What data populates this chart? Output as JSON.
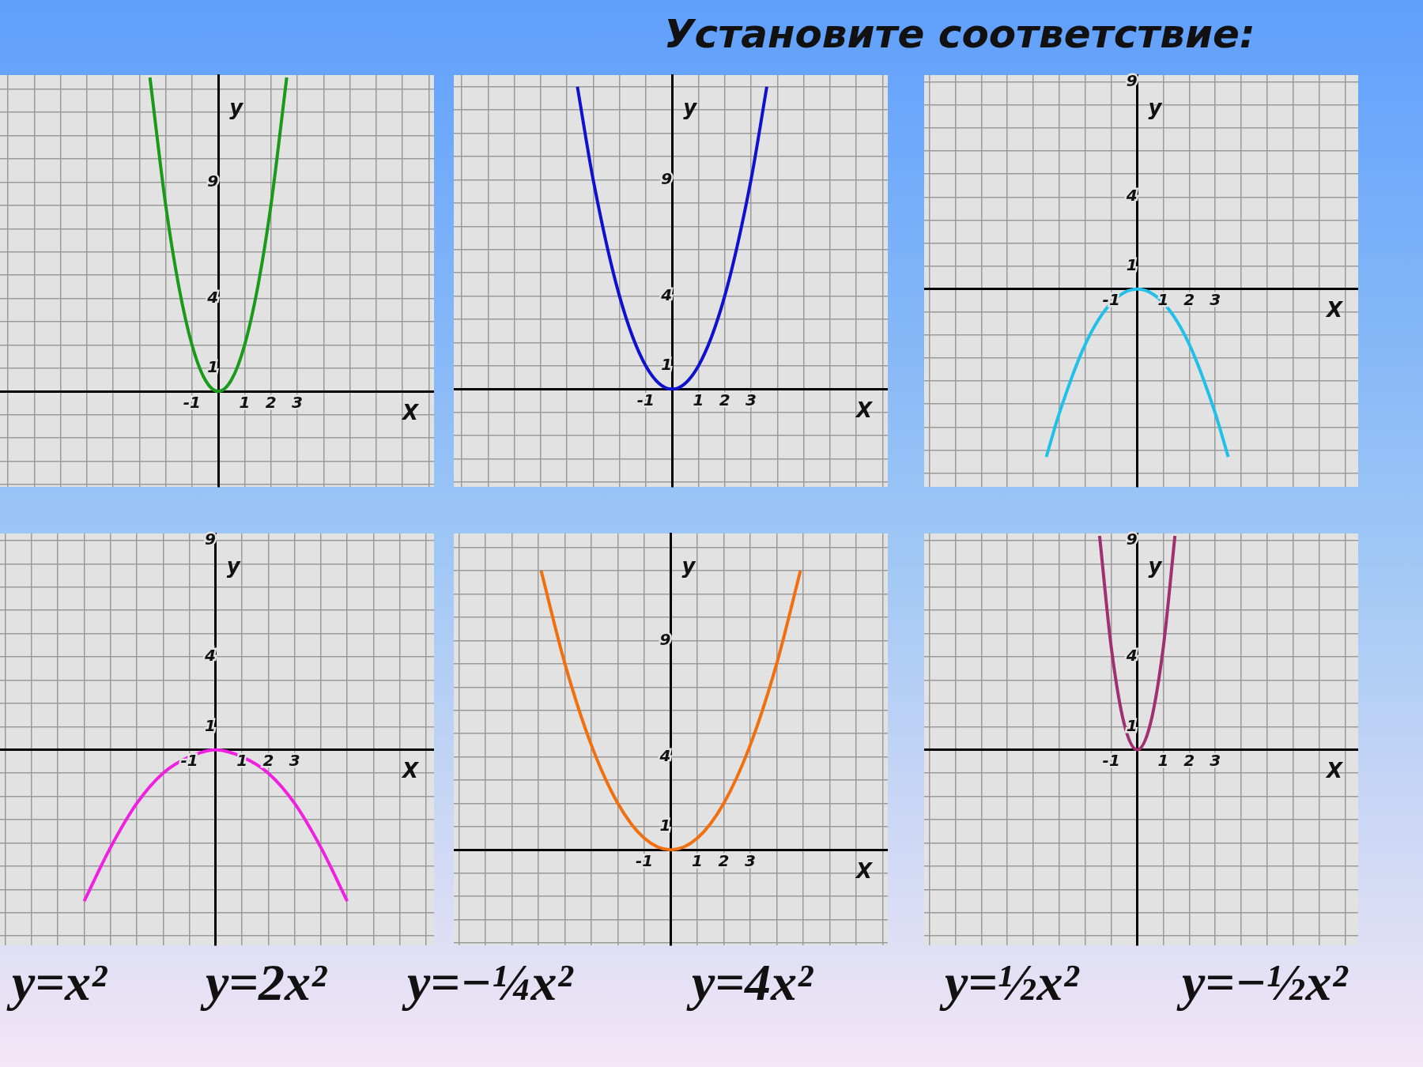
{
  "chart_data": [
    {
      "type": "other",
      "title": "Установите соответствие:",
      "annotations": [
        "y=x²",
        "y=2x²",
        "y=−¼x²",
        "y=4x²",
        "y=½x²",
        "y=−½x²"
      ]
    },
    {
      "type": "line",
      "xlabel": "Х",
      "ylabel": "у",
      "grid": true,
      "legend": false,
      "marker": "none",
      "xlim": [
        -8.3,
        8.2
      ],
      "ylim": [
        -4.1,
        13.6
      ],
      "xticks": [
        {
          "value": -8,
          "label": null
        },
        {
          "value": -7,
          "label": null
        },
        {
          "value": -6,
          "label": null
        },
        {
          "value": -5,
          "label": null
        },
        {
          "value": -4,
          "label": null
        },
        {
          "value": -3,
          "label": null
        },
        {
          "value": -2,
          "label": null
        },
        -1,
        {
          "value": 0,
          "label": null
        },
        1,
        2,
        3,
        {
          "value": 4,
          "label": null
        },
        {
          "value": 5,
          "label": null
        },
        {
          "value": 6,
          "label": null
        },
        {
          "value": 7,
          "label": null
        },
        {
          "value": 8,
          "label": null
        }
      ],
      "yticks": [
        {
          "value": -4,
          "label": null
        },
        {
          "value": -3,
          "label": null
        },
        {
          "value": -2,
          "label": null
        },
        {
          "value": -1,
          "label": null
        },
        {
          "value": 0,
          "label": null
        },
        1,
        {
          "value": 2,
          "label": null
        },
        {
          "value": 3,
          "label": null
        },
        4,
        {
          "value": 5,
          "label": null
        },
        {
          "value": 6,
          "label": null
        },
        {
          "value": 7,
          "label": null
        },
        {
          "value": 8,
          "label": null
        },
        9,
        {
          "value": 10,
          "label": null
        },
        {
          "value": 11,
          "label": null
        },
        {
          "value": 12,
          "label": null
        },
        {
          "value": 13,
          "label": null
        }
      ],
      "series": [
        {
          "color": "#1a9a1a",
          "x": [
            -2.6,
            -2,
            -1.5,
            -1,
            -0.5,
            0,
            0.5,
            1,
            1.5,
            2,
            2.6
          ],
          "values": [
            13.5,
            8,
            4.5,
            2,
            0.5,
            0,
            0.5,
            2,
            4.5,
            8,
            13.5
          ]
        }
      ]
    },
    {
      "type": "line",
      "xlabel": "Х",
      "ylabel": "у",
      "grid": true,
      "legend": false,
      "marker": "none",
      "xlim": [
        -8.3,
        8.2
      ],
      "ylim": [
        -4.2,
        13.5
      ],
      "xticks": [
        {
          "value": -8,
          "label": null
        },
        {
          "value": -7,
          "label": null
        },
        {
          "value": -6,
          "label": null
        },
        {
          "value": -5,
          "label": null
        },
        {
          "value": -4,
          "label": null
        },
        {
          "value": -3,
          "label": null
        },
        {
          "value": -2,
          "label": null
        },
        -1,
        {
          "value": 0,
          "label": null
        },
        1,
        2,
        3,
        {
          "value": 4,
          "label": null
        },
        {
          "value": 5,
          "label": null
        },
        {
          "value": 6,
          "label": null
        },
        {
          "value": 7,
          "label": null
        },
        {
          "value": 8,
          "label": null
        }
      ],
      "yticks": [
        {
          "value": -4,
          "label": null
        },
        {
          "value": -3,
          "label": null
        },
        {
          "value": -2,
          "label": null
        },
        {
          "value": -1,
          "label": null
        },
        {
          "value": 0,
          "label": null
        },
        1,
        {
          "value": 2,
          "label": null
        },
        {
          "value": 3,
          "label": null
        },
        4,
        {
          "value": 5,
          "label": null
        },
        {
          "value": 6,
          "label": null
        },
        {
          "value": 7,
          "label": null
        },
        {
          "value": 8,
          "label": null
        },
        9,
        {
          "value": 10,
          "label": null
        },
        {
          "value": 11,
          "label": null
        },
        {
          "value": 12,
          "label": null
        },
        {
          "value": 13,
          "label": null
        }
      ],
      "series": [
        {
          "color": "#1010d0",
          "x": [
            -3.6,
            -3,
            -2,
            -1,
            0,
            1,
            2,
            3,
            3.6
          ],
          "values": [
            13,
            9,
            4,
            1,
            0,
            1,
            4,
            9,
            13
          ]
        }
      ]
    },
    {
      "type": "line",
      "xlabel": "Х",
      "ylabel": "у",
      "grid": true,
      "legend": false,
      "marker": "none",
      "xlim": [
        -8.2,
        8.5
      ],
      "ylim": [
        -8.6,
        9.3
      ],
      "xticks": [
        {
          "value": -8,
          "label": null
        },
        {
          "value": -7,
          "label": null
        },
        {
          "value": -6,
          "label": null
        },
        {
          "value": -5,
          "label": null
        },
        {
          "value": -4,
          "label": null
        },
        {
          "value": -3,
          "label": null
        },
        {
          "value": -2,
          "label": null
        },
        -1,
        {
          "value": 0,
          "label": null
        },
        1,
        2,
        3,
        {
          "value": 4,
          "label": null
        },
        {
          "value": 5,
          "label": null
        },
        {
          "value": 6,
          "label": null
        },
        {
          "value": 7,
          "label": null
        },
        {
          "value": 8,
          "label": null
        }
      ],
      "yticks": [
        {
          "value": -8,
          "label": null
        },
        {
          "value": -7,
          "label": null
        },
        {
          "value": -6,
          "label": null
        },
        {
          "value": -5,
          "label": null
        },
        {
          "value": -4,
          "label": null
        },
        {
          "value": -3,
          "label": null
        },
        {
          "value": -2,
          "label": null
        },
        {
          "value": -1,
          "label": null
        },
        {
          "value": 0,
          "label": null
        },
        1,
        {
          "value": 2,
          "label": null
        },
        {
          "value": 3,
          "label": null
        },
        4,
        {
          "value": 5,
          "label": null
        },
        {
          "value": 6,
          "label": null
        },
        {
          "value": 7,
          "label": null
        },
        {
          "value": 8,
          "label": null
        },
        9
      ],
      "series": [
        {
          "color": "#20c0e8",
          "x": [
            -3.5,
            -3,
            -2,
            -1,
            0,
            1,
            2,
            3,
            3.5
          ],
          "values": [
            -7.3,
            -5.4,
            -2.4,
            -0.6,
            0,
            -0.6,
            -2.4,
            -5.4,
            -7.3
          ]
        }
      ]
    },
    {
      "type": "line",
      "xlabel": "Х",
      "ylabel": "у",
      "grid": true,
      "legend": false,
      "marker": "none",
      "xlim": [
        -8.2,
        8.3
      ],
      "ylim": [
        -8.4,
        9.3
      ],
      "xticks": [
        {
          "value": -8,
          "label": null
        },
        {
          "value": -7,
          "label": null
        },
        {
          "value": -6,
          "label": null
        },
        {
          "value": -5,
          "label": null
        },
        {
          "value": -4,
          "label": null
        },
        {
          "value": -3,
          "label": null
        },
        {
          "value": -2,
          "label": null
        },
        -1,
        {
          "value": 0,
          "label": null
        },
        1,
        2,
        3,
        {
          "value": 4,
          "label": null
        },
        {
          "value": 5,
          "label": null
        },
        {
          "value": 6,
          "label": null
        },
        {
          "value": 7,
          "label": null
        },
        {
          "value": 8,
          "label": null
        }
      ],
      "yticks": [
        {
          "value": -8,
          "label": null
        },
        {
          "value": -7,
          "label": null
        },
        {
          "value": -6,
          "label": null
        },
        {
          "value": -5,
          "label": null
        },
        {
          "value": -4,
          "label": null
        },
        {
          "value": -3,
          "label": null
        },
        {
          "value": -2,
          "label": null
        },
        {
          "value": -1,
          "label": null
        },
        {
          "value": 0,
          "label": null
        },
        1,
        {
          "value": 2,
          "label": null
        },
        {
          "value": 3,
          "label": null
        },
        4,
        {
          "value": 5,
          "label": null
        },
        {
          "value": 6,
          "label": null
        },
        {
          "value": 7,
          "label": null
        },
        {
          "value": 8,
          "label": null
        },
        9
      ],
      "series": [
        {
          "color": "#f020e0",
          "x": [
            -5,
            -4,
            -3,
            -2,
            -1,
            0,
            1,
            2,
            3,
            4,
            5
          ],
          "values": [
            -6.5,
            -4.2,
            -2.3,
            -1,
            -0.3,
            0,
            -0.3,
            -1,
            -2.3,
            -4.2,
            -6.5
          ]
        }
      ]
    },
    {
      "type": "line",
      "xlabel": "Х",
      "ylabel": "у",
      "grid": true,
      "legend": false,
      "marker": "none",
      "xlim": [
        -8.2,
        8.2
      ],
      "ylim": [
        -4.1,
        13.6
      ],
      "xticks": [
        {
          "value": -8,
          "label": null
        },
        {
          "value": -7,
          "label": null
        },
        {
          "value": -6,
          "label": null
        },
        {
          "value": -5,
          "label": null
        },
        {
          "value": -4,
          "label": null
        },
        {
          "value": -3,
          "label": null
        },
        {
          "value": -2,
          "label": null
        },
        -1,
        {
          "value": 0,
          "label": null
        },
        1,
        2,
        3,
        {
          "value": 4,
          "label": null
        },
        {
          "value": 5,
          "label": null
        },
        {
          "value": 6,
          "label": null
        },
        {
          "value": 7,
          "label": null
        },
        {
          "value": 8,
          "label": null
        }
      ],
      "yticks": [
        {
          "value": -4,
          "label": null
        },
        {
          "value": -3,
          "label": null
        },
        {
          "value": -2,
          "label": null
        },
        {
          "value": -1,
          "label": null
        },
        {
          "value": 0,
          "label": null
        },
        1,
        {
          "value": 2,
          "label": null
        },
        {
          "value": 3,
          "label": null
        },
        4,
        {
          "value": 5,
          "label": null
        },
        {
          "value": 6,
          "label": null
        },
        {
          "value": 7,
          "label": null
        },
        {
          "value": 8,
          "label": null
        },
        9,
        {
          "value": 10,
          "label": null
        },
        {
          "value": 11,
          "label": null
        },
        {
          "value": 12,
          "label": null
        },
        {
          "value": 13,
          "label": null
        }
      ],
      "series": [
        {
          "color": "#f07010",
          "x": [
            -4.9,
            -4,
            -3,
            -2,
            -1,
            0,
            1,
            2,
            3,
            4,
            4.9
          ],
          "values": [
            12,
            8,
            4.5,
            2,
            0.5,
            0,
            0.5,
            2,
            4.5,
            8,
            12
          ]
        }
      ]
    },
    {
      "type": "line",
      "xlabel": "Х",
      "ylabel": "у",
      "grid": true,
      "legend": false,
      "marker": "none",
      "xlim": [
        -8.2,
        8.5
      ],
      "ylim": [
        -8.4,
        9.3
      ],
      "xticks": [
        {
          "value": -8,
          "label": null
        },
        {
          "value": -7,
          "label": null
        },
        {
          "value": -6,
          "label": null
        },
        {
          "value": -5,
          "label": null
        },
        {
          "value": -4,
          "label": null
        },
        {
          "value": -3,
          "label": null
        },
        {
          "value": -2,
          "label": null
        },
        -1,
        {
          "value": 0,
          "label": null
        },
        1,
        2,
        3,
        {
          "value": 4,
          "label": null
        },
        {
          "value": 5,
          "label": null
        },
        {
          "value": 6,
          "label": null
        },
        {
          "value": 7,
          "label": null
        },
        {
          "value": 8,
          "label": null
        }
      ],
      "yticks": [
        {
          "value": -8,
          "label": null
        },
        {
          "value": -7,
          "label": null
        },
        {
          "value": -6,
          "label": null
        },
        {
          "value": -5,
          "label": null
        },
        {
          "value": -4,
          "label": null
        },
        {
          "value": -3,
          "label": null
        },
        {
          "value": -2,
          "label": null
        },
        {
          "value": -1,
          "label": null
        },
        {
          "value": 0,
          "label": null
        },
        1,
        {
          "value": 2,
          "label": null
        },
        {
          "value": 3,
          "label": null
        },
        4,
        {
          "value": 5,
          "label": null
        },
        {
          "value": 6,
          "label": null
        },
        {
          "value": 7,
          "label": null
        },
        {
          "value": 8,
          "label": null
        },
        9
      ],
      "series": [
        {
          "color": "#a03070",
          "x": [
            -1.45,
            -1,
            -0.5,
            0,
            0.5,
            1,
            1.45
          ],
          "values": [
            9.2,
            4.4,
            1.1,
            0,
            1.1,
            4.4,
            9.2
          ]
        }
      ]
    }
  ]
}
